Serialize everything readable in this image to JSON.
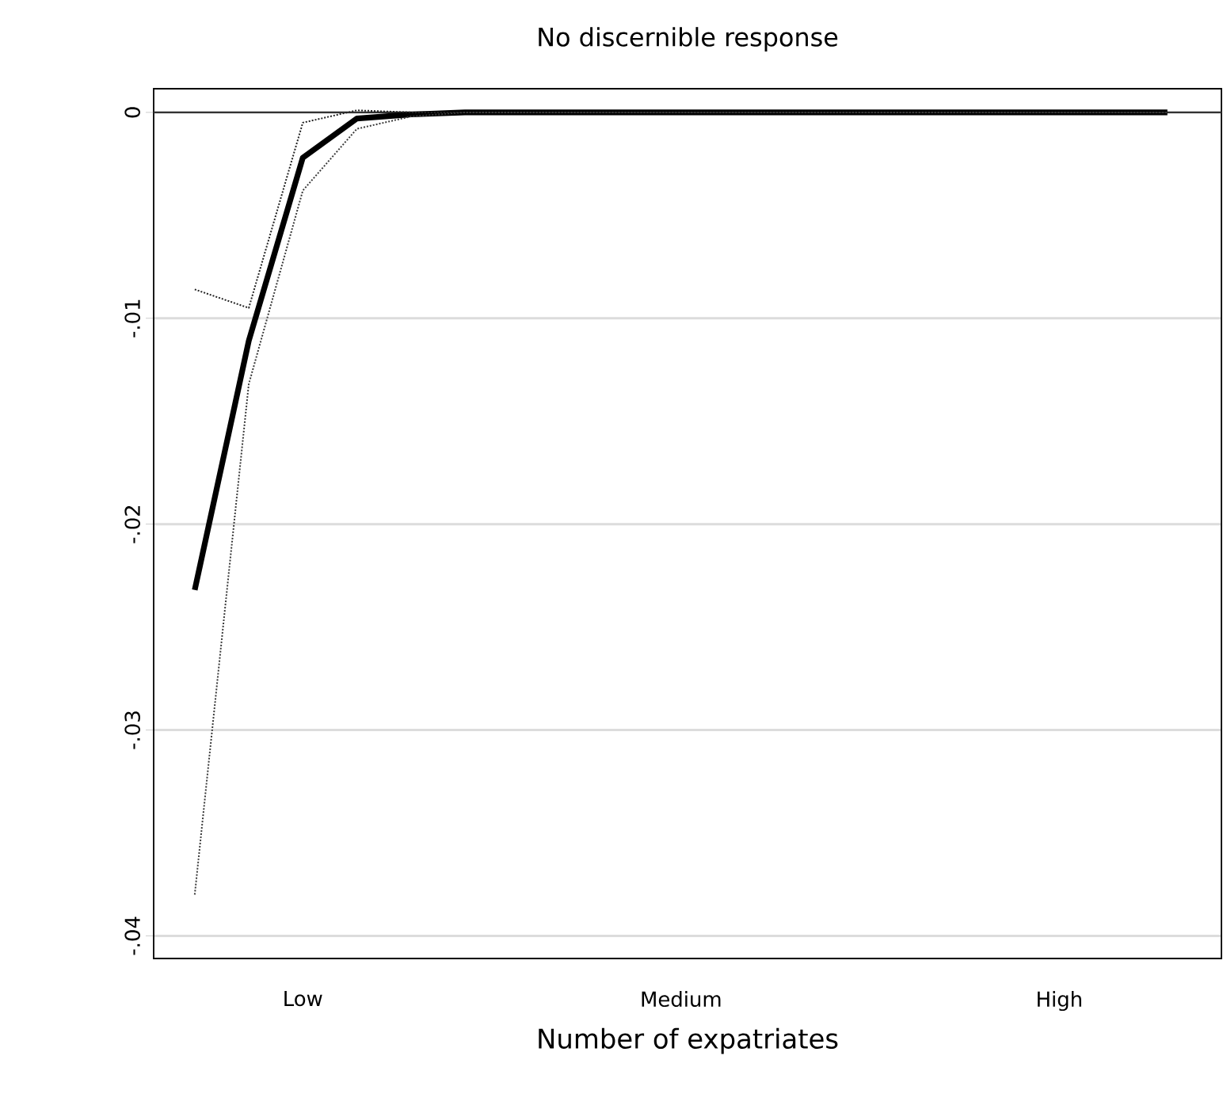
{
  "chart_data": {
    "type": "line",
    "title": "No discernible response",
    "xlabel": "Number of expatriates",
    "categories": [
      null,
      null,
      "Low",
      null,
      null,
      null,
      null,
      null,
      null,
      "Medium",
      null,
      null,
      null,
      null,
      null,
      null,
      "High",
      null,
      null
    ],
    "series": [
      {
        "color": "#000000",
        "line_style": "solid",
        "values": [
          -0.0232,
          -0.0111,
          -0.0022,
          -0.0003,
          -0.0001,
          0,
          0,
          0,
          0,
          0,
          0,
          0,
          0,
          0,
          0,
          0,
          0,
          0,
          0
        ]
      },
      {
        "color": "#222222",
        "line_style": "dotted",
        "values": [
          -0.0086,
          -0.0095,
          -0.0005,
          0.0001,
          0,
          0,
          0,
          0,
          0,
          0,
          0,
          0,
          0,
          0,
          0,
          0,
          0,
          0,
          0
        ]
      },
      {
        "color": "#3a3a3a",
        "line_style": "dotted",
        "values": [
          -0.038,
          -0.0132,
          -0.0038,
          -0.0008,
          -0.0002,
          0,
          0,
          0,
          0,
          0,
          0,
          0,
          0,
          0,
          0,
          0,
          0,
          0,
          0
        ]
      }
    ],
    "ylim": [
      -0.0411,
      0.00115
    ],
    "yticks": [
      {
        "value": -0.04,
        "label": "-.04"
      },
      {
        "value": -0.03,
        "label": "-.03"
      },
      {
        "value": -0.02,
        "label": "-.02"
      },
      {
        "value": -0.01,
        "label": "-.01"
      },
      0
    ],
    "grid": "y",
    "marker": "none",
    "ref_lines": [
      {
        "axis": "y",
        "value": 0,
        "color": "#333333"
      }
    ]
  }
}
